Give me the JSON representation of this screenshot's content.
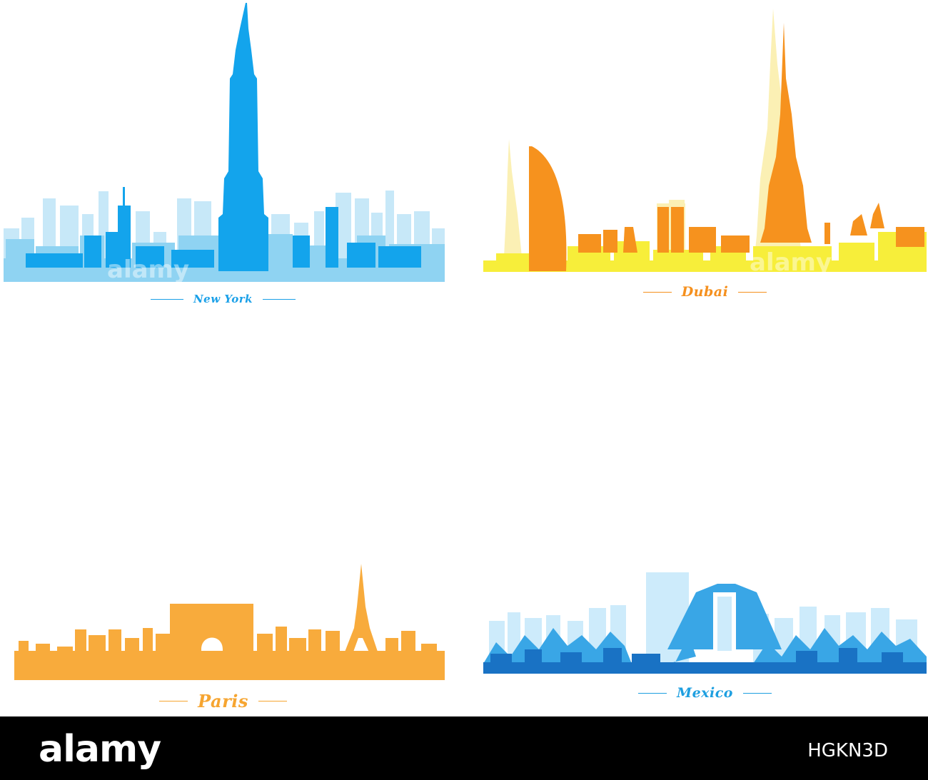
{
  "cities": [
    {
      "id": "new-york",
      "label": "New York",
      "accent": "#1aa0e8"
    },
    {
      "id": "dubai",
      "label": "Dubai",
      "accent": "#f5901e"
    },
    {
      "id": "paris",
      "label": "Paris",
      "accent": "#f6a531"
    },
    {
      "id": "mexico",
      "label": "Mexico",
      "accent": "#1e9fe0"
    }
  ],
  "watermark": "alamy",
  "footer": {
    "brand": "alamy",
    "stock_id": "HGKN3D"
  },
  "colors": {
    "ny_light": "#c7e8f8",
    "ny_mid": "#8fd3f2",
    "ny_dark": "#13a4ec",
    "dubai_light": "#fbf0b4",
    "dubai_yellow": "#f7ee3a",
    "dubai_orange": "#f6921e",
    "paris_orange": "#f8ab3c",
    "mex_light": "#cdebfb",
    "mex_mid": "#39a6e6",
    "mex_dark": "#1972c4"
  }
}
